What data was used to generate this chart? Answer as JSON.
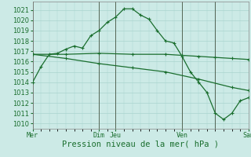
{
  "bg_color": "#cceae6",
  "grid_color": "#aad4ce",
  "line_color": "#1a6e2e",
  "marker_color": "#1a6e2e",
  "xtick_labels": [
    "Mer",
    "Dim",
    "Jeu",
    "Ven",
    "Sam"
  ],
  "xtick_positions": [
    0,
    4,
    5,
    9,
    13
  ],
  "ylim": [
    1009.5,
    1021.8
  ],
  "yticks": [
    1010,
    1011,
    1012,
    1013,
    1014,
    1015,
    1016,
    1017,
    1018,
    1019,
    1020,
    1021
  ],
  "xlabel": "Pression niveau de la mer( hPa )",
  "series1_x": [
    0,
    0.5,
    1.0,
    1.5,
    2.0,
    2.5,
    3.0,
    3.5,
    4.0,
    4.5,
    5.0,
    5.5,
    6.0,
    6.5,
    7.0,
    7.5,
    8.0,
    8.5,
    9.0,
    9.5,
    10.0,
    10.5,
    11.0,
    11.5,
    12.0,
    12.5,
    13.0
  ],
  "series1_y": [
    1014.0,
    1015.5,
    1016.7,
    1016.8,
    1017.2,
    1017.5,
    1017.3,
    1018.5,
    1019.0,
    1019.8,
    1020.3,
    1021.1,
    1021.1,
    1020.5,
    1020.1,
    1019.0,
    1018.0,
    1017.8,
    1016.5,
    1015.0,
    1014.0,
    1013.0,
    1011.0,
    1010.4,
    1011.0,
    1012.2,
    1012.5
  ],
  "series2_x": [
    0,
    2,
    4,
    6,
    8,
    9,
    10,
    11,
    12,
    13
  ],
  "series2_y": [
    1016.7,
    1016.7,
    1016.8,
    1016.7,
    1016.7,
    1016.6,
    1016.5,
    1016.4,
    1016.3,
    1016.2
  ],
  "series3_x": [
    0,
    2,
    4,
    6,
    8,
    10,
    12,
    13
  ],
  "series3_y": [
    1016.7,
    1016.3,
    1015.8,
    1015.4,
    1015.0,
    1014.3,
    1013.5,
    1013.2
  ],
  "vlines_x": [
    0,
    4,
    5,
    9,
    11,
    13
  ],
  "title_fontsize": 7.0,
  "tick_fontsize": 6.0,
  "label_fontsize": 7.5
}
